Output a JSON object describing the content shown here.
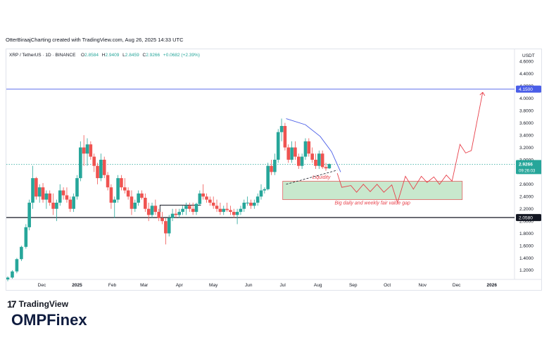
{
  "header": {
    "credit": "OtterBiraajCharting created with TradingView.com, Aug 26, 2025 14:33 UTC"
  },
  "legend": {
    "symbol": "XRP / TetherUS · 1D · BINANCE",
    "o_label": "O",
    "o_value": "2.8584",
    "h_label": "H",
    "h_value": "2.9409",
    "l_label": "L",
    "l_value": "2.8459",
    "c_label": "C",
    "c_value": "2.9266",
    "change": "+0.0682 (+2.39%)"
  },
  "axis": {
    "currency": "USDT"
  },
  "price_tag": {
    "value": "2.9266",
    "countdown": "09:26:03"
  },
  "level_tags": {
    "upper": "4.1500",
    "lower": "2.0580"
  },
  "annotations": {
    "liquidity": "Liquidity",
    "fvg": "Big daily and weekly fair value gap"
  },
  "branding": {
    "tv_mark": "17",
    "tv_name": "TradingView",
    "footer_logo": "OMPFinex"
  },
  "colors": {
    "up": "#26a69a",
    "down": "#ef5350",
    "annotation": "#e8404a",
    "level_line": "#4a5ee8",
    "zone": "#c8e8cd",
    "zone_border": "#e06060"
  },
  "chart_data": {
    "type": "candlestick",
    "ylim": [
      1.05,
      4.8
    ],
    "y_ticks": [
      4.6,
      4.4,
      4.2,
      4.0,
      3.8,
      3.6,
      3.4,
      3.2,
      3.0,
      2.8,
      2.6,
      2.4,
      2.2,
      2.0,
      1.8,
      1.6,
      1.4,
      1.2
    ],
    "y_tick_labels": [
      "4.6000",
      "4.4000",
      "4.2000",
      "4.0000",
      "3.8000",
      "3.6000",
      "3.4000",
      "3.2000",
      "3.0000",
      "2.8000",
      "2.6000",
      "2.4000",
      "2.2000",
      "2.0000",
      "1.8000",
      "1.6000",
      "1.4000",
      "1.2000"
    ],
    "x_ticks": [
      "Dec",
      "2025",
      "Feb",
      "Mar",
      "Apr",
      "May",
      "Jun",
      "Jul",
      "Aug",
      "Sep",
      "Oct",
      "Nov",
      "Dec",
      "2026"
    ],
    "x_tick_pos": [
      30,
      61,
      92,
      120,
      151,
      181,
      212,
      242,
      273,
      304,
      334,
      365,
      395,
      426
    ],
    "x_range": [
      0,
      446
    ],
    "last_price": 2.9266,
    "horizontal_lines": [
      4.15,
      2.058
    ],
    "fvg_zone": {
      "x0": 242,
      "x1": 400,
      "y_low": 2.35,
      "y_high": 2.65
    },
    "projection_path": [
      [
        290,
        2.78
      ],
      [
        294,
        2.55
      ],
      [
        302,
        2.58
      ],
      [
        307,
        2.47
      ],
      [
        313,
        2.6
      ],
      [
        319,
        2.48
      ],
      [
        325,
        2.6
      ],
      [
        331,
        2.47
      ],
      [
        338,
        2.59
      ],
      [
        343,
        2.3
      ],
      [
        350,
        2.73
      ],
      [
        357,
        2.52
      ],
      [
        364,
        2.73
      ],
      [
        369,
        2.63
      ],
      [
        375,
        2.72
      ],
      [
        380,
        2.6
      ],
      [
        386,
        2.75
      ],
      [
        391,
        2.65
      ],
      [
        398,
        3.25
      ],
      [
        403,
        3.11
      ],
      [
        408,
        3.15
      ],
      [
        418,
        4.1
      ]
    ],
    "arc_path": [
      [
        245,
        3.67
      ],
      [
        262,
        3.57
      ],
      [
        275,
        3.38
      ],
      [
        285,
        3.13
      ],
      [
        293,
        2.8
      ]
    ],
    "dashed_trend": [
      [
        245,
        2.6
      ],
      [
        290,
        2.83
      ]
    ],
    "black_box": [
      [
        134,
        2.06
      ],
      [
        134,
        2.26
      ],
      [
        170,
        2.26
      ]
    ],
    "candles": [
      [
        0,
        1.05,
        1.1,
        1.02,
        1.08
      ],
      [
        4,
        1.08,
        1.2,
        1.06,
        1.18
      ],
      [
        8,
        1.18,
        1.4,
        1.15,
        1.38
      ],
      [
        12,
        1.38,
        1.6,
        1.35,
        1.58
      ],
      [
        16,
        1.58,
        1.95,
        1.55,
        1.9
      ],
      [
        19,
        1.9,
        2.35,
        1.85,
        2.3
      ],
      [
        22,
        2.3,
        2.9,
        2.2,
        2.7
      ],
      [
        25,
        2.7,
        2.72,
        2.35,
        2.4
      ],
      [
        28,
        2.4,
        2.6,
        2.3,
        2.55
      ],
      [
        31,
        2.55,
        2.62,
        2.3,
        2.35
      ],
      [
        34,
        2.35,
        2.5,
        2.2,
        2.45
      ],
      [
        37,
        2.45,
        2.5,
        2.25,
        2.3
      ],
      [
        40,
        2.3,
        2.45,
        2.1,
        2.2
      ],
      [
        43,
        2.2,
        2.35,
        2.0,
        2.3
      ],
      [
        46,
        2.3,
        2.6,
        2.25,
        2.5
      ],
      [
        49,
        2.5,
        2.55,
        2.35,
        2.42
      ],
      [
        52,
        2.42,
        2.55,
        2.3,
        2.35
      ],
      [
        55,
        2.35,
        2.4,
        2.15,
        2.2
      ],
      [
        58,
        2.2,
        2.45,
        2.15,
        2.4
      ],
      [
        61,
        2.4,
        2.75,
        2.35,
        2.7
      ],
      [
        64,
        2.7,
        3.3,
        2.65,
        3.2
      ],
      [
        67,
        3.2,
        3.4,
        2.9,
        3.1
      ],
      [
        70,
        3.1,
        3.35,
        2.9,
        3.25
      ],
      [
        73,
        3.25,
        3.3,
        3.0,
        3.05
      ],
      [
        76,
        3.05,
        3.1,
        2.8,
        2.9
      ],
      [
        79,
        2.9,
        2.95,
        2.6,
        2.7
      ],
      [
        82,
        2.7,
        3.1,
        2.65,
        3.0
      ],
      [
        85,
        3.0,
        3.05,
        2.7,
        2.75
      ],
      [
        88,
        2.75,
        2.8,
        2.5,
        2.55
      ],
      [
        91,
        2.55,
        2.6,
        2.2,
        2.3
      ],
      [
        94,
        2.3,
        2.4,
        2.05,
        2.35
      ],
      [
        97,
        2.35,
        2.75,
        2.3,
        2.7
      ],
      [
        100,
        2.7,
        2.75,
        2.5,
        2.55
      ],
      [
        103,
        2.55,
        2.7,
        2.45,
        2.5
      ],
      [
        106,
        2.5,
        2.55,
        2.35,
        2.4
      ],
      [
        109,
        2.4,
        2.5,
        2.1,
        2.2
      ],
      [
        112,
        2.2,
        2.35,
        2.15,
        2.3
      ],
      [
        115,
        2.3,
        2.5,
        2.25,
        2.45
      ],
      [
        118,
        2.45,
        2.5,
        2.35,
        2.38
      ],
      [
        121,
        2.38,
        2.45,
        2.15,
        2.2
      ],
      [
        124,
        2.2,
        2.3,
        2.0,
        2.1
      ],
      [
        127,
        2.1,
        2.3,
        2.05,
        2.25
      ],
      [
        130,
        2.25,
        2.35,
        2.1,
        2.15
      ],
      [
        133,
        2.15,
        2.2,
        2.0,
        2.05
      ],
      [
        136,
        2.05,
        2.15,
        1.95,
        2.0
      ],
      [
        139,
        2.0,
        2.05,
        1.62,
        1.8
      ],
      [
        142,
        1.8,
        2.1,
        1.75,
        2.05
      ],
      [
        145,
        2.05,
        2.2,
        2.0,
        2.12
      ],
      [
        148,
        2.12,
        2.2,
        2.05,
        2.1
      ],
      [
        151,
        2.1,
        2.2,
        2.05,
        2.15
      ],
      [
        154,
        2.15,
        2.25,
        2.1,
        2.2
      ],
      [
        157,
        2.2,
        2.3,
        2.1,
        2.25
      ],
      [
        160,
        2.25,
        2.3,
        2.15,
        2.2
      ],
      [
        163,
        2.2,
        2.3,
        2.1,
        2.15
      ],
      [
        166,
        2.15,
        2.3,
        2.1,
        2.28
      ],
      [
        169,
        2.28,
        2.5,
        2.25,
        2.45
      ],
      [
        172,
        2.45,
        2.6,
        2.35,
        2.4
      ],
      [
        175,
        2.4,
        2.45,
        2.3,
        2.35
      ],
      [
        178,
        2.35,
        2.4,
        2.25,
        2.3
      ],
      [
        181,
        2.3,
        2.4,
        2.2,
        2.25
      ],
      [
        184,
        2.25,
        2.35,
        2.15,
        2.2
      ],
      [
        187,
        2.2,
        2.3,
        2.1,
        2.15
      ],
      [
        190,
        2.15,
        2.25,
        2.1,
        2.2
      ],
      [
        193,
        2.2,
        2.3,
        2.15,
        2.18
      ],
      [
        196,
        2.18,
        2.25,
        2.1,
        2.15
      ],
      [
        199,
        2.15,
        2.2,
        2.05,
        2.1
      ],
      [
        202,
        2.1,
        2.2,
        1.95,
        2.15
      ],
      [
        205,
        2.15,
        2.25,
        2.1,
        2.2
      ],
      [
        208,
        2.2,
        2.35,
        2.15,
        2.3
      ],
      [
        211,
        2.3,
        2.4,
        2.25,
        2.3
      ],
      [
        214,
        2.3,
        2.35,
        2.2,
        2.25
      ],
      [
        217,
        2.25,
        2.35,
        2.2,
        2.3
      ],
      [
        220,
        2.3,
        2.45,
        2.25,
        2.4
      ],
      [
        223,
        2.4,
        2.6,
        2.35,
        2.5
      ],
      [
        226,
        2.5,
        2.55,
        2.45,
        2.52
      ],
      [
        229,
        2.52,
        2.95,
        2.5,
        2.9
      ],
      [
        232,
        2.9,
        3.0,
        2.75,
        2.8
      ],
      [
        235,
        2.8,
        3.1,
        2.75,
        3.0
      ],
      [
        238,
        3.0,
        3.5,
        2.95,
        3.45
      ],
      [
        241,
        3.45,
        3.67,
        3.3,
        3.55
      ],
      [
        244,
        3.55,
        3.6,
        3.15,
        3.2
      ],
      [
        247,
        3.2,
        3.25,
        2.95,
        3.0
      ],
      [
        250,
        3.0,
        3.3,
        2.95,
        3.2
      ],
      [
        253,
        3.2,
        3.3,
        3.0,
        3.05
      ],
      [
        256,
        3.05,
        3.1,
        2.85,
        2.9
      ],
      [
        259,
        2.9,
        3.1,
        2.85,
        3.05
      ],
      [
        262,
        3.05,
        3.35,
        3.0,
        3.3
      ],
      [
        265,
        3.3,
        3.35,
        3.05,
        3.1
      ],
      [
        268,
        3.1,
        3.2,
        2.95,
        3.0
      ],
      [
        271,
        3.0,
        3.1,
        2.85,
        2.9
      ],
      [
        274,
        2.9,
        3.15,
        2.85,
        3.1
      ],
      [
        277,
        3.1,
        3.15,
        2.85,
        2.88
      ],
      [
        280,
        2.88,
        2.95,
        2.82,
        2.86
      ],
      [
        283,
        2.86,
        2.94,
        2.85,
        2.93
      ]
    ]
  }
}
